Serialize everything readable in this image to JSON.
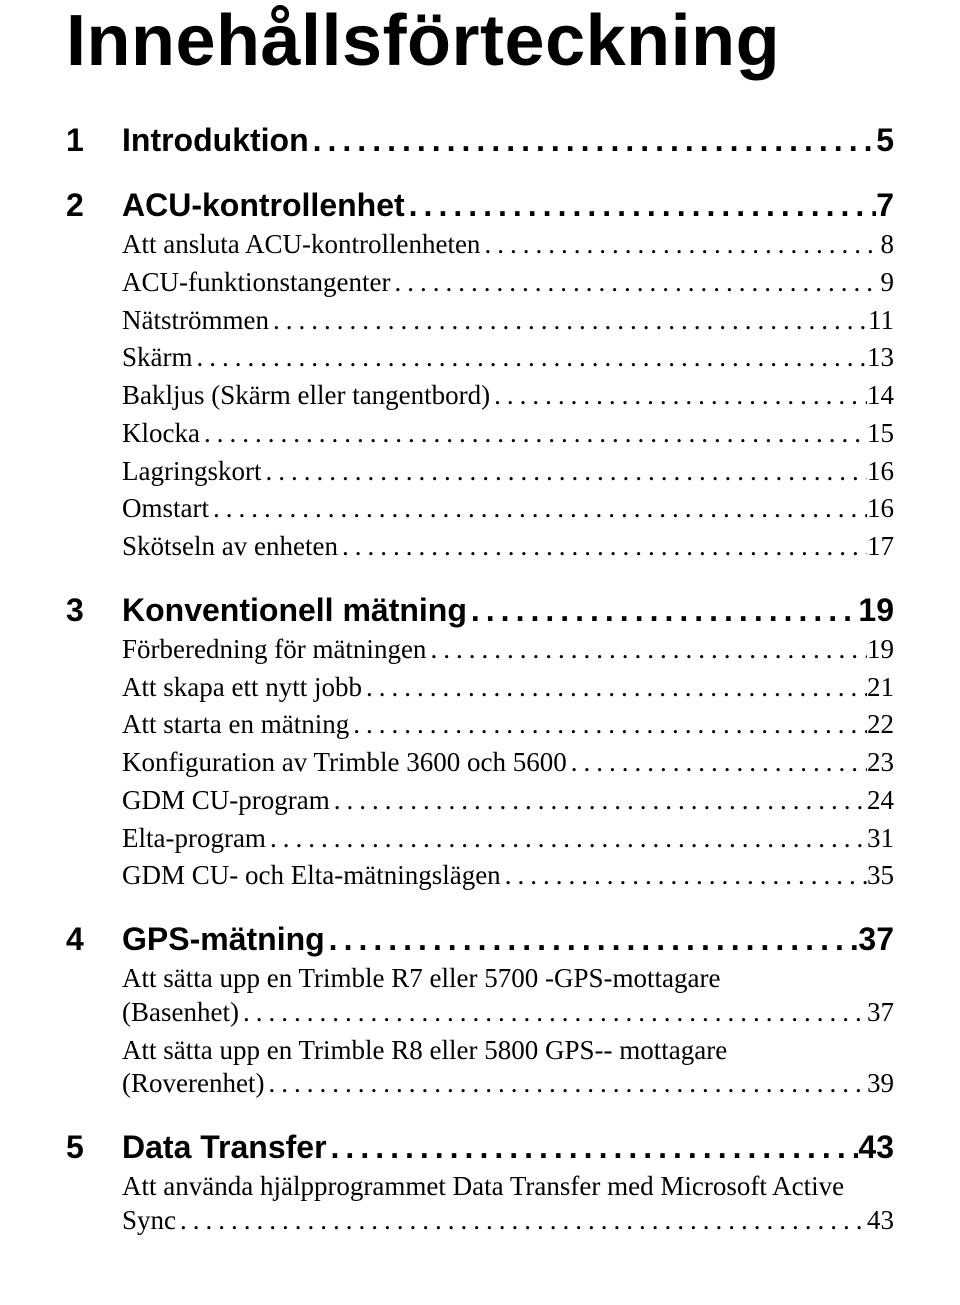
{
  "title": "Innehållsförteckning",
  "leader_char": ".",
  "sections": [
    {
      "num": "1",
      "label": "Introduktion",
      "page": "5",
      "items": []
    },
    {
      "num": "2",
      "label": "ACU-kontrollenhet",
      "page": "7",
      "items": [
        {
          "label": "Att ansluta ACU-kontrollenheten",
          "page": "8"
        },
        {
          "label": "ACU-funktionstangenter",
          "page": "9"
        },
        {
          "label": "Nätströmmen",
          "page": "11"
        },
        {
          "label": "Skärm",
          "page": "13"
        },
        {
          "label": "Bakljus (Skärm eller tangentbord)",
          "page": "14"
        },
        {
          "label": "Klocka",
          "page": "15"
        },
        {
          "label": "Lagringskort",
          "page": "16"
        },
        {
          "label": "Omstart",
          "page": "16"
        },
        {
          "label": "Skötseln av enheten",
          "page": "17"
        }
      ]
    },
    {
      "num": "3",
      "label": "Konventionell mätning",
      "page": "19",
      "items": [
        {
          "label": "Förberedning för mätningen",
          "page": "19"
        },
        {
          "label": "Att skapa ett nytt jobb",
          "page": "21"
        },
        {
          "label": "Att starta en mätning",
          "page": "22"
        },
        {
          "label": "Konfiguration av Trimble 3600 och 5600",
          "page": "23"
        },
        {
          "label": "GDM CU-program",
          "page": "24"
        },
        {
          "label": "Elta-program",
          "page": "31"
        },
        {
          "label": "GDM CU- och Elta-mätningslägen",
          "page": "35"
        }
      ]
    },
    {
      "num": "4",
      "label": "GPS-mätning",
      "page": "37",
      "items": [
        {
          "multiline": true,
          "line1": "Att sätta upp en Trimble R7 eller 5700 -GPS-mottagare",
          "line2": "(Basenhet)",
          "page": "37"
        },
        {
          "multiline": true,
          "line1": "Att sätta upp en Trimble R8 eller 5800 GPS-- mottagare",
          "line2": "(Roverenhet)",
          "page": "39"
        }
      ]
    },
    {
      "num": "5",
      "label": "Data Transfer",
      "page": "43",
      "items": [
        {
          "multiline": true,
          "line1": "Att använda hjälpprogrammet Data Transfer med Microsoft Active",
          "line2": "Sync",
          "page": "43"
        }
      ]
    }
  ]
}
